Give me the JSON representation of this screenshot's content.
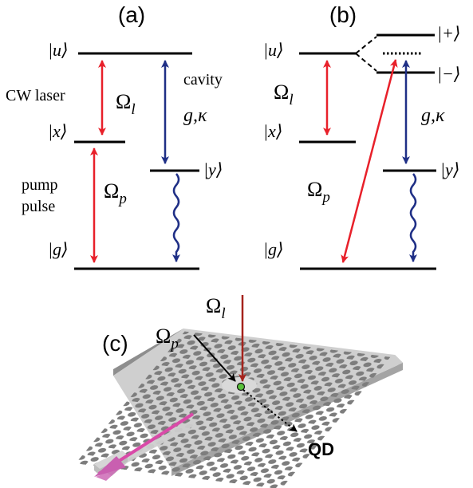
{
  "colors": {
    "pump": "#e8202a",
    "cavity": "#1f2f86",
    "laser_top": "#a5231c",
    "waveguide_beam": "#d94aa8",
    "slab_top": "#cfcfcf",
    "slab_side": "#9a9a9a",
    "hole": "#7d7d7d",
    "qd": "#59c13b"
  },
  "panel_a": {
    "label": "(a)",
    "state_u": "|u⟩",
    "state_x": "|x⟩",
    "state_y": "|y⟩",
    "state_g": "|g⟩",
    "cw_laser": "CW laser",
    "omega_l": "Ω",
    "omega_l_sub": "l",
    "cavity": "cavity",
    "cavity_params": "g,κ",
    "pump_line1": "pump",
    "pump_line2": "pulse",
    "omega_p": "Ω",
    "omega_p_sub": "p"
  },
  "panel_b": {
    "label": "(b)",
    "state_u": "|u⟩",
    "state_plus": "|+⟩",
    "state_minus": "|−⟩",
    "state_x": "|x⟩",
    "state_y": "|y⟩",
    "state_g": "|g⟩",
    "omega_l": "Ω",
    "omega_l_sub": "l",
    "cavity_params": "g,κ",
    "omega_p": "Ω",
    "omega_p_sub": "p"
  },
  "panel_c": {
    "label": "(c)",
    "omega_l": "Ω",
    "omega_l_sub": "l",
    "omega_p": "Ω",
    "omega_p_sub": "p",
    "qd_label": "QD"
  }
}
